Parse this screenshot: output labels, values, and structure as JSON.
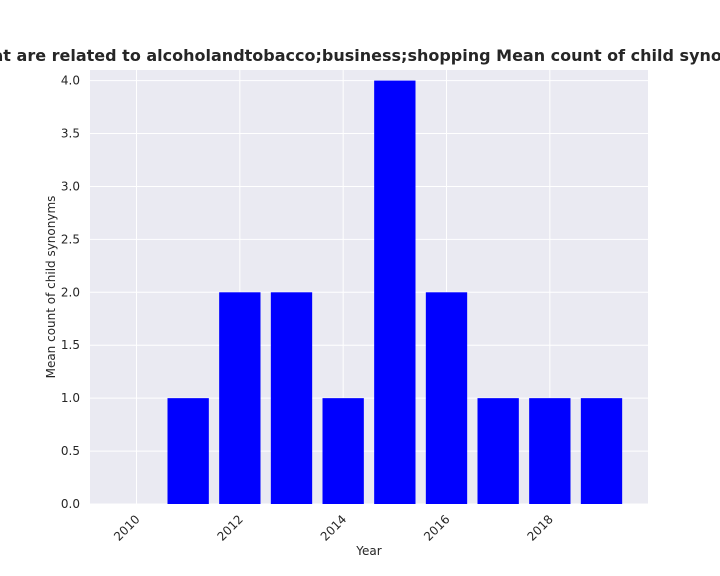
{
  "chart_data": {
    "type": "bar",
    "title": "Number of subjects that are related to alcoholandtobacco;business;shopping Mean count of child synonyms in privacy policies",
    "xlabel": "Year",
    "ylabel": "Mean count of child synonyms",
    "x": [
      2011,
      2012,
      2013,
      2014,
      2015,
      2016,
      2017,
      2018,
      2019
    ],
    "values": [
      1,
      2,
      2,
      1,
      4,
      2,
      1,
      1,
      1
    ],
    "xlim": [
      2009.1,
      2019.9
    ],
    "ylim": [
      0,
      4.1
    ],
    "xticks": [
      "2010",
      "2012",
      "2014",
      "2016",
      "2018"
    ],
    "yticks": [
      "0.0",
      "0.5",
      "1.0",
      "1.5",
      "2.0",
      "2.5",
      "3.0",
      "3.5",
      "4.0"
    ],
    "grid": true,
    "bar_color": "#0000ff",
    "background_color": "#eaeaf2"
  }
}
